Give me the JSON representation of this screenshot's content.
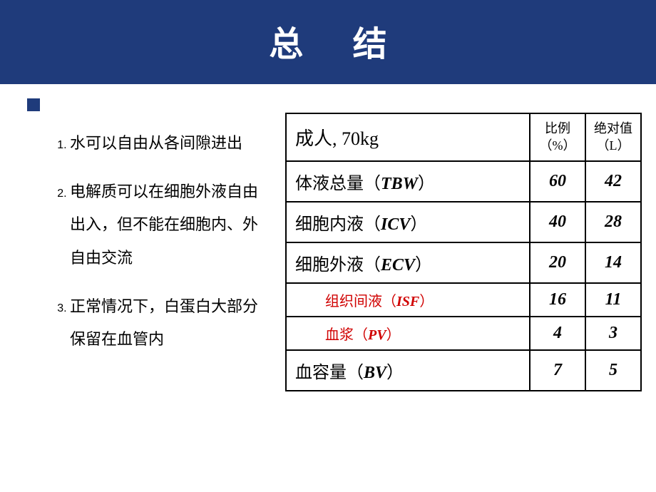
{
  "title": "总 结",
  "bullets": [
    "水可以自由从各间隙进出",
    "电解质可以在细胞外液自由出入，但不能在细胞内、外自由交流",
    "正常情况下，白蛋白大部分保留在血管内"
  ],
  "table": {
    "header": {
      "main": "成人, 70kg",
      "col1_line1": "比例",
      "col1_line2": "（%）",
      "col2_line1": "绝对值",
      "col2_line2": "（L）"
    },
    "rows": [
      {
        "label_cn": "体液总量",
        "abbr": "TBW",
        "pct": "60",
        "abs": "42",
        "red": false
      },
      {
        "label_cn": "细胞内液",
        "abbr": "ICV",
        "pct": "40",
        "abs": "28",
        "red": false
      },
      {
        "label_cn": "细胞外液",
        "abbr": "ECV",
        "pct": "20",
        "abs": "14",
        "red": false
      },
      {
        "label_cn": "组织间液",
        "abbr": "ISF",
        "pct": "16",
        "abs": "11",
        "red": true
      },
      {
        "label_cn": "血浆",
        "abbr": "PV",
        "pct": "4",
        "abs": "3",
        "red": true
      },
      {
        "label_cn": "血容量",
        "abbr": "BV",
        "pct": "7",
        "abs": "5",
        "red": false
      }
    ]
  },
  "colors": {
    "title_bg": "#1f3b7b",
    "title_fg": "#ffffff",
    "red_text": "#d00000",
    "border": "#000000"
  }
}
